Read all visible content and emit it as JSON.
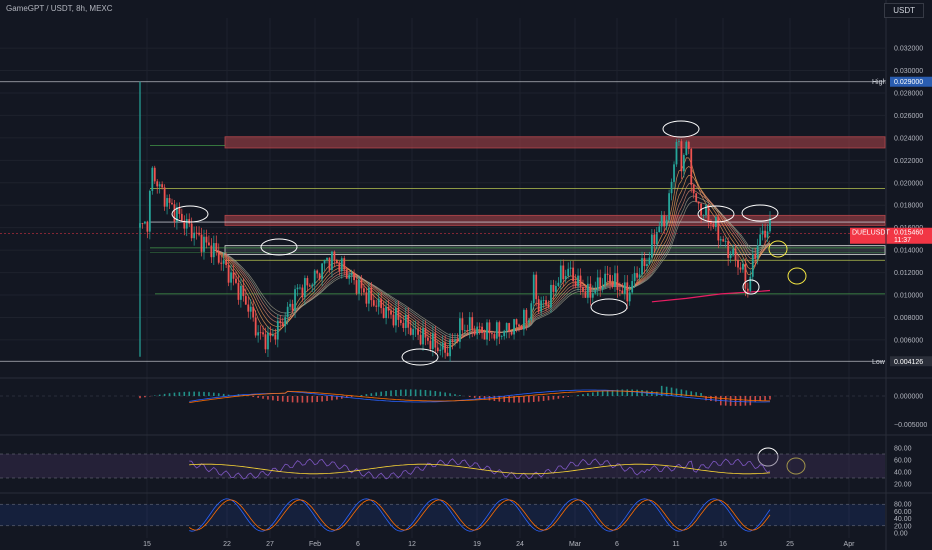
{
  "header": {
    "symbol": "GameGPT / USDT, 8h, MEXC",
    "currency": "USDT"
  },
  "chart_data": {
    "type": "candlestick",
    "price_axis": {
      "ylim": [
        0.0035,
        0.0345
      ],
      "ticks": [
        "0.032000",
        "0.030000",
        "0.028000",
        "0.026000",
        "0.024000",
        "0.022000",
        "0.020000",
        "0.018000",
        "0.016000",
        "0.014000",
        "0.012000",
        "0.010000",
        "0.008000",
        "0.006000"
      ]
    },
    "x_ticks": [
      "15",
      "22",
      "27",
      "Feb",
      "6",
      "12",
      "19",
      "24",
      "Mar",
      "6",
      "11",
      "16",
      "25",
      "Apr"
    ],
    "price_labels": {
      "high": {
        "label": "High",
        "value": "0.029000"
      },
      "low": {
        "label": "Low",
        "value": "0.004126"
      },
      "current": {
        "label": "DUELUSDT",
        "value": "0.015460",
        "countdown": "11:37"
      }
    },
    "horizontal_levels": [
      0.029,
      0.0195,
      0.0165,
      0.0142,
      0.0131,
      0.0101,
      0.0041
    ],
    "zones": [
      {
        "top": 0.0241,
        "bottom": 0.0231,
        "color": "#b2454a"
      },
      {
        "top": 0.0171,
        "bottom": 0.0162,
        "color": "#b2454a"
      },
      {
        "top": 0.0144,
        "bottom": 0.0136,
        "color": "#d8d8d8"
      }
    ],
    "price_path": [
      [
        0,
        0.016
      ],
      [
        3,
        0.0165
      ],
      [
        5,
        0.021
      ],
      [
        8,
        0.0195
      ],
      [
        12,
        0.018
      ],
      [
        18,
        0.0165
      ],
      [
        24,
        0.015
      ],
      [
        30,
        0.014
      ],
      [
        36,
        0.012
      ],
      [
        40,
        0.0105
      ],
      [
        44,
        0.009
      ],
      [
        48,
        0.0065
      ],
      [
        52,
        0.006
      ],
      [
        56,
        0.007
      ],
      [
        60,
        0.0085
      ],
      [
        64,
        0.0105
      ],
      [
        68,
        0.0108
      ],
      [
        72,
        0.0118
      ],
      [
        76,
        0.0132
      ],
      [
        80,
        0.013
      ],
      [
        84,
        0.012
      ],
      [
        88,
        0.011
      ],
      [
        92,
        0.01
      ],
      [
        96,
        0.0092
      ],
      [
        100,
        0.0085
      ],
      [
        104,
        0.008
      ],
      [
        108,
        0.0074
      ],
      [
        112,
        0.0066
      ],
      [
        116,
        0.0062
      ],
      [
        120,
        0.0055
      ],
      [
        124,
        0.005
      ],
      [
        127,
        0.0057
      ],
      [
        130,
        0.007
      ],
      [
        134,
        0.0072
      ],
      [
        138,
        0.0068
      ],
      [
        142,
        0.0067
      ],
      [
        146,
        0.0066
      ],
      [
        150,
        0.007
      ],
      [
        154,
        0.0074
      ],
      [
        158,
        0.008
      ],
      [
        160,
        0.011
      ],
      [
        162,
        0.009
      ],
      [
        166,
        0.0095
      ],
      [
        170,
        0.0115
      ],
      [
        174,
        0.0122
      ],
      [
        178,
        0.011
      ],
      [
        182,
        0.01
      ],
      [
        186,
        0.0108
      ],
      [
        190,
        0.0116
      ],
      [
        194,
        0.0108
      ],
      [
        198,
        0.01
      ],
      [
        202,
        0.012
      ],
      [
        206,
        0.013
      ],
      [
        210,
        0.0158
      ],
      [
        214,
        0.017
      ],
      [
        216,
        0.02
      ],
      [
        218,
        0.024
      ],
      [
        220,
        0.0215
      ],
      [
        222,
        0.0238
      ],
      [
        224,
        0.0205
      ],
      [
        226,
        0.018
      ],
      [
        230,
        0.0172
      ],
      [
        234,
        0.016
      ],
      [
        238,
        0.0142
      ],
      [
        241,
        0.0135
      ],
      [
        244,
        0.0125
      ],
      [
        247,
        0.0105
      ],
      [
        250,
        0.014
      ],
      [
        253,
        0.0155
      ],
      [
        256,
        0.016
      ]
    ],
    "ema_ribbon_end": [
      0.0145,
      0.0125
    ],
    "ema_red": [
      [
        208,
        0.0094
      ],
      [
        222,
        0.0097
      ],
      [
        236,
        0.0101
      ],
      [
        250,
        0.0103
      ],
      [
        256,
        0.0104
      ]
    ],
    "macd_panel": {
      "ticks": [
        "0.000000",
        "−0.005000"
      ]
    },
    "rsi_panel": {
      "ticks": [
        "80.00",
        "60.00",
        "40.00",
        "20.00"
      ]
    },
    "stoch_panel": {
      "ticks": [
        "80.00",
        "60.00",
        "40.00",
        "20.00",
        "0.00"
      ]
    },
    "markers": {
      "white_ellipses": 9,
      "yellow_ellipses": 3
    },
    "colors": {
      "up": "#26a69a",
      "down": "#ef5350",
      "background": "#131722",
      "grid": "#1e222d",
      "high_label_bg": "#2a2e39",
      "current_label_bg": "#f23645",
      "zone_red": "#b2454a",
      "level_green": "#4caf50",
      "level_yellow": "#d4e157",
      "ema_red": "#e91e63",
      "rsi_bg": "#3b2f54"
    }
  }
}
